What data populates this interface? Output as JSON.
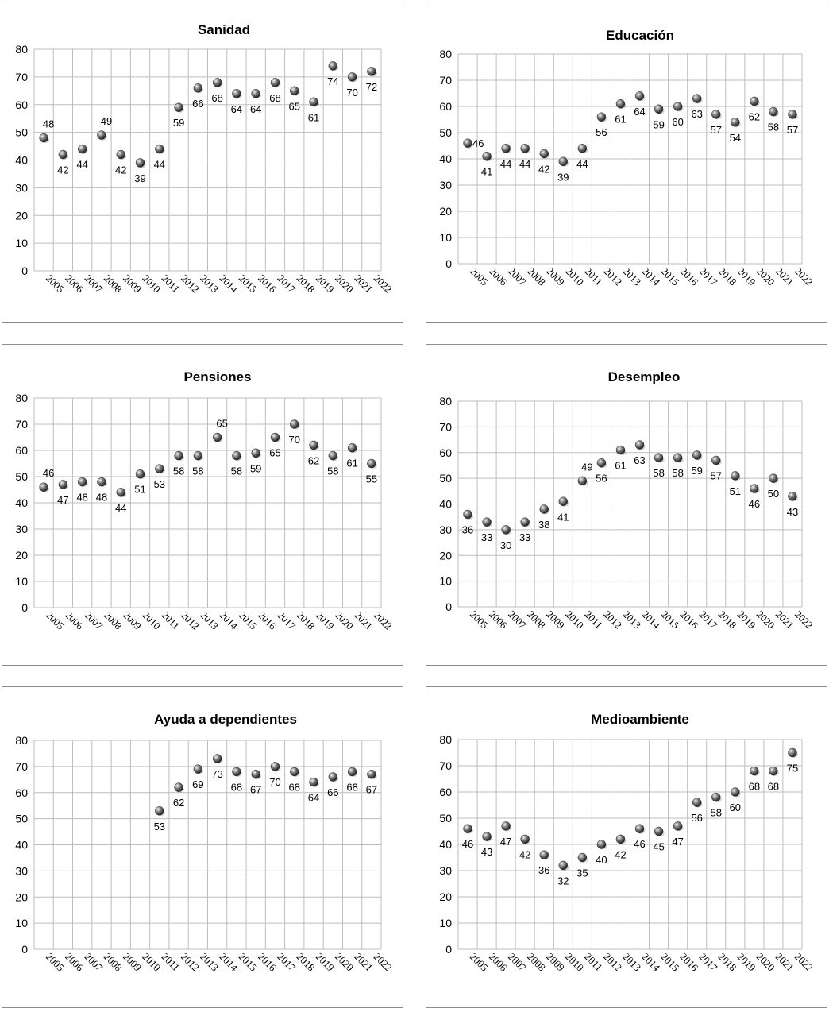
{
  "chart_data": [
    {
      "type": "scatter",
      "title": "Sanidad",
      "categories": [
        "2005",
        "2006",
        "2007",
        "2008",
        "2009",
        "2010",
        "2011",
        "2012",
        "2013",
        "2014",
        "2015",
        "2016",
        "2017",
        "2018",
        "2019",
        "2020",
        "2021",
        "2022"
      ],
      "values": [
        48,
        42,
        44,
        49,
        42,
        39,
        44,
        59,
        66,
        68,
        64,
        64,
        68,
        65,
        61,
        74,
        70,
        72
      ],
      "yticks": [
        0,
        10,
        20,
        30,
        40,
        50,
        60,
        70,
        80
      ],
      "ylim": [
        0,
        80
      ],
      "grid": true
    },
    {
      "type": "scatter",
      "title": "Educación",
      "categories": [
        "2005",
        "2006",
        "2007",
        "2008",
        "2009",
        "2010",
        "2011",
        "2012",
        "2013",
        "2014",
        "2015",
        "2016",
        "2017",
        "2018",
        "2019",
        "2020",
        "2021",
        "2022"
      ],
      "values": [
        46,
        41,
        44,
        44,
        42,
        39,
        44,
        56,
        61,
        64,
        59,
        60,
        63,
        57,
        54,
        62,
        58,
        57
      ],
      "yticks": [
        0,
        10,
        20,
        30,
        40,
        50,
        60,
        70,
        80
      ],
      "ylim": [
        0,
        80
      ],
      "grid": true
    },
    {
      "type": "scatter",
      "title": "Pensiones",
      "categories": [
        "2005",
        "2006",
        "2007",
        "2008",
        "2009",
        "2010",
        "2011",
        "2012",
        "2013",
        "2014",
        "2015",
        "2016",
        "2017",
        "2018",
        "2019",
        "2020",
        "2021",
        "2022"
      ],
      "values": [
        46,
        47,
        48,
        48,
        44,
        51,
        53,
        58,
        58,
        65,
        58,
        59,
        65,
        70,
        62,
        58,
        61,
        55
      ],
      "yticks": [
        0,
        10,
        20,
        30,
        40,
        50,
        60,
        70,
        80
      ],
      "ylim": [
        0,
        80
      ],
      "grid": true
    },
    {
      "type": "scatter",
      "title": "Desempleo",
      "categories": [
        "2005",
        "2006",
        "2007",
        "2008",
        "2009",
        "2010",
        "2011",
        "2012",
        "2013",
        "2014",
        "2015",
        "2016",
        "2017",
        "2018",
        "2019",
        "2020",
        "2021",
        "2022"
      ],
      "values": [
        36,
        33,
        30,
        33,
        38,
        41,
        49,
        56,
        61,
        63,
        58,
        58,
        59,
        57,
        51,
        46,
        50,
        43
      ],
      "yticks": [
        0,
        10,
        20,
        30,
        40,
        50,
        60,
        70,
        80
      ],
      "ylim": [
        0,
        80
      ],
      "grid": true
    },
    {
      "type": "scatter",
      "title": "Ayuda a dependientes",
      "categories": [
        "2005",
        "2006",
        "2007",
        "2008",
        "2009",
        "2010",
        "2011",
        "2012",
        "2013",
        "2014",
        "2015",
        "2016",
        "2017",
        "2018",
        "2019",
        "2020",
        "2021",
        "2022"
      ],
      "values": [
        null,
        null,
        null,
        null,
        null,
        null,
        53,
        62,
        69,
        73,
        68,
        67,
        70,
        68,
        64,
        66,
        68,
        67
      ],
      "yticks": [
        0,
        10,
        20,
        30,
        40,
        50,
        60,
        70,
        80
      ],
      "ylim": [
        0,
        80
      ],
      "grid": true
    },
    {
      "type": "scatter",
      "title": "Medioambiente",
      "categories": [
        "2005",
        "2006",
        "2007",
        "2008",
        "2009",
        "2010",
        "2011",
        "2012",
        "2013",
        "2014",
        "2015",
        "2016",
        "2017",
        "2018",
        "2019",
        "2020",
        "2021",
        "2022"
      ],
      "values": [
        46,
        43,
        47,
        42,
        36,
        32,
        35,
        40,
        42,
        46,
        45,
        47,
        56,
        58,
        60,
        68,
        68,
        75
      ],
      "yticks": [
        0,
        10,
        20,
        30,
        40,
        50,
        60,
        70,
        80
      ],
      "ylim": [
        0,
        80
      ],
      "grid": true
    }
  ]
}
